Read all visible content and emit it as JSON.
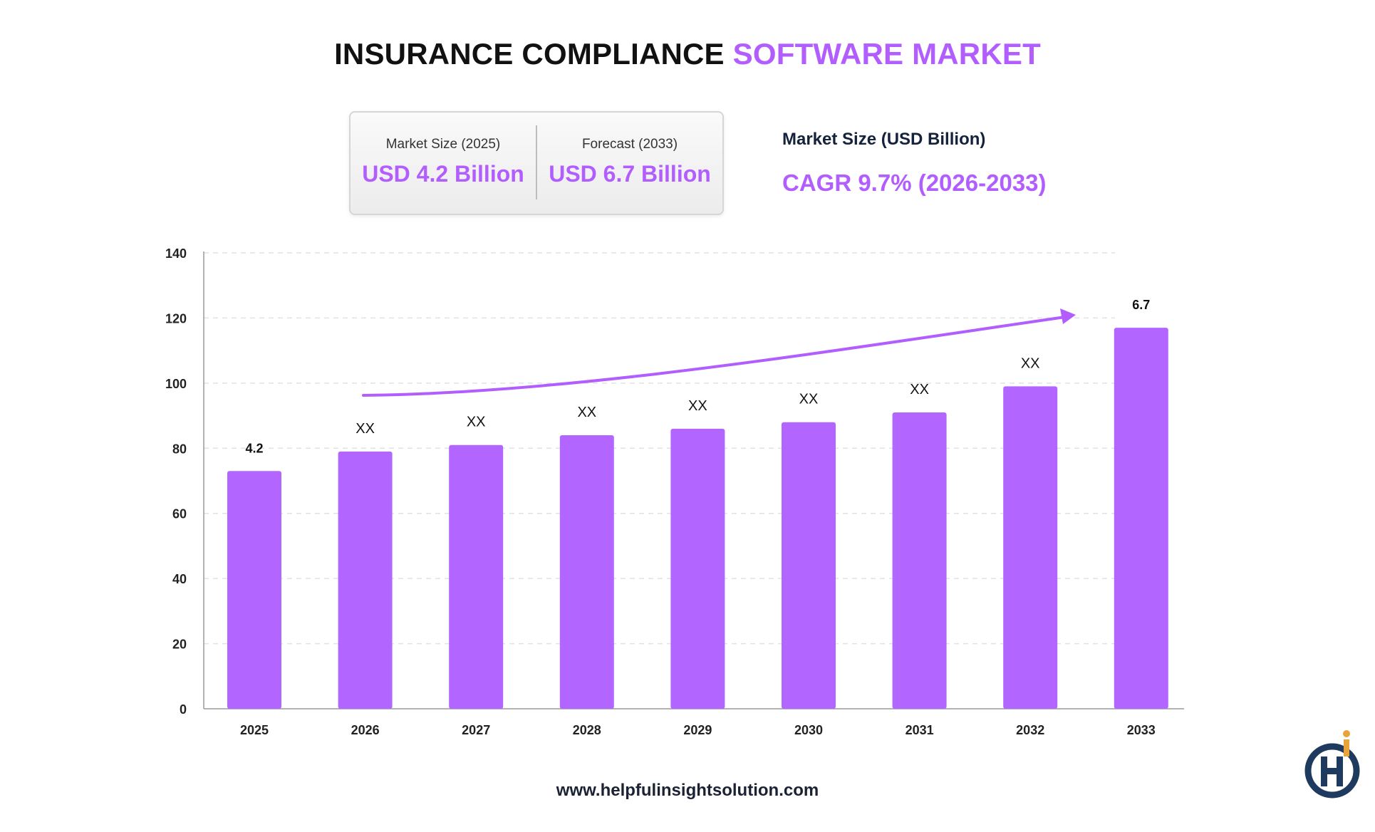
{
  "title": {
    "part1": "INSURANCE COMPLIANCE",
    "part2": "SOFTWARE MARKET"
  },
  "stats": {
    "market_size_label": "Market Size (2025)",
    "market_size_value": "USD 4.2 Billion",
    "forecast_label": "Forecast (2033)",
    "forecast_value": "USD 6.7 Billion"
  },
  "side": {
    "label": "Market Size (USD Billion)",
    "cagr": "CAGR 9.7% (2026-2033)"
  },
  "footer": {
    "url": "www.helpfulinsightsolution.com"
  },
  "colors": {
    "accent": "#b25eff",
    "bar": "#b366ff",
    "dark": "#1e3a5f",
    "logo_gold": "#e8a33a"
  },
  "logo": {
    "icon": "helpful-insight-logo"
  },
  "chart_data": {
    "type": "bar",
    "categories": [
      "2025",
      "2026",
      "2027",
      "2028",
      "2029",
      "2030",
      "2031",
      "2032",
      "2033"
    ],
    "values": [
      73,
      79,
      81,
      84,
      86,
      88,
      91,
      99,
      117
    ],
    "data_labels": [
      "4.2",
      "XX",
      "XX",
      "XX",
      "XX",
      "XX",
      "XX",
      "XX",
      "6.7"
    ],
    "ylim": [
      0,
      140
    ],
    "yticks": [
      0,
      20,
      40,
      60,
      80,
      100,
      120,
      140
    ],
    "grid": true,
    "trend_arrow": true,
    "title": "",
    "xlabel": "",
    "ylabel": ""
  }
}
